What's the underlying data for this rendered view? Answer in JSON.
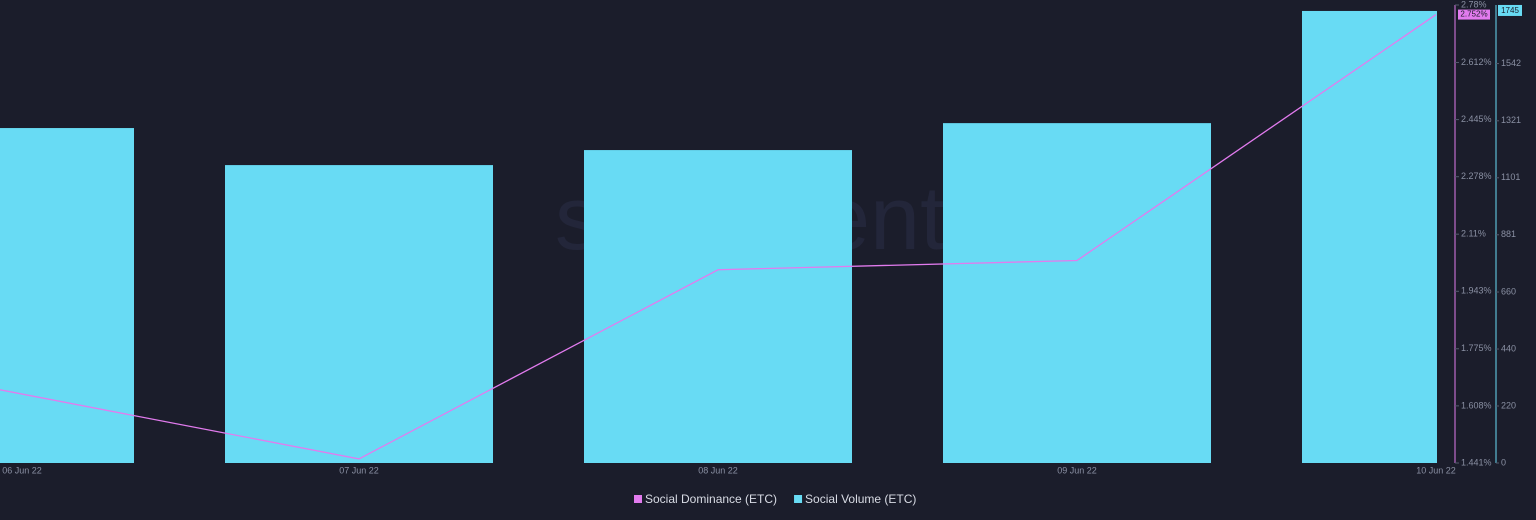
{
  "chart_data": {
    "type": "bar-line",
    "watermark": "santiment",
    "categories": [
      "06 Jun 22",
      "07 Jun 22",
      "08 Jun 22",
      "09 Jun 22",
      "10 Jun 22"
    ],
    "series": [
      {
        "name": "Social Dominance (ETC)",
        "color": "#e27bee",
        "type": "line",
        "axis": "y",
        "values": [
          1.655,
          1.453,
          2.006,
          2.033,
          2.752
        ],
        "value_labels": [
          null,
          null,
          null,
          null,
          "2.752%"
        ]
      },
      {
        "name": "Social Volume (ETC)",
        "color": "#68dbf4",
        "type": "bar",
        "axis": "y2",
        "values": [
          1293,
          1150,
          1208,
          1312,
          1745
        ]
      }
    ],
    "ylim": [
      1.441,
      2.78
    ],
    "yticks": [
      {
        "value": 1.441,
        "label": "1.441%"
      },
      {
        "value": 1.608,
        "label": "1.608%"
      },
      {
        "value": 1.775,
        "label": "1.775%"
      },
      {
        "value": 1.943,
        "label": "1.943%"
      },
      {
        "value": 2.11,
        "label": "2.11%"
      },
      {
        "value": 2.278,
        "label": "2.278%"
      },
      {
        "value": 2.445,
        "label": "2.445%"
      },
      {
        "value": 2.612,
        "label": "2.612%"
      },
      {
        "value": 2.78,
        "label": "2.78%"
      }
    ],
    "y2lim": [
      0,
      1768
    ],
    "y2ticks": [
      0,
      220,
      440,
      660,
      881,
      1101,
      1321,
      1542
    ],
    "legend": "bottom"
  }
}
